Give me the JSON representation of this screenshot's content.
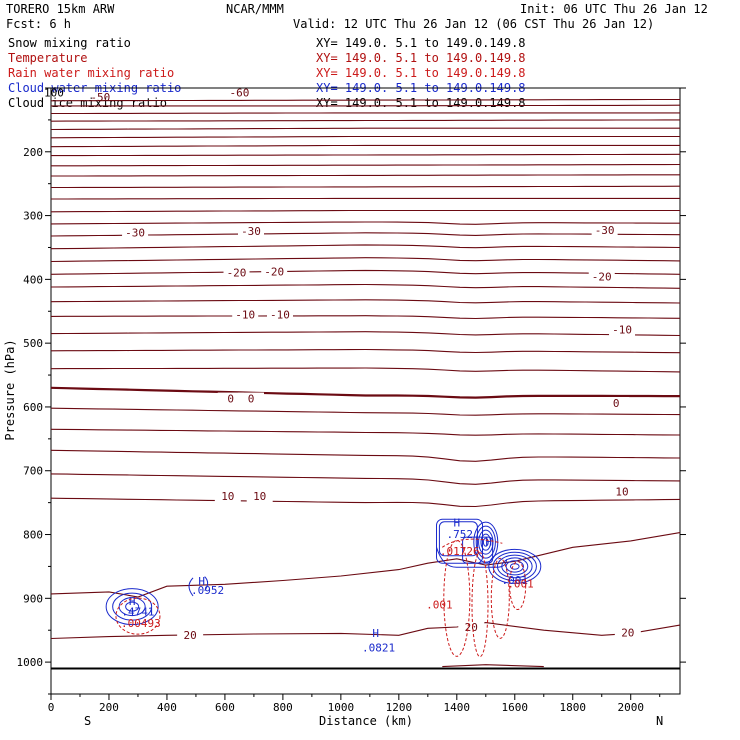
{
  "header": {
    "model": "TORERO  15km ARW",
    "center": "NCAR/MMM",
    "init": "Init: 06 UTC Thu 26 Jan 12",
    "fcst": "Fcst:    6 h",
    "valid": "Valid: 12 UTC Thu 26 Jan 12 (06 CST Thu 26 Jan 12)"
  },
  "colors": {
    "black": "#000000",
    "temperature": "#6b0a12",
    "rain": "#cc1a1a",
    "cloud_water": "#1a2acc"
  },
  "legend": [
    {
      "label": "Snow mixing ratio",
      "coords": "XY= 149.0.  5.1 to 149.0.149.8",
      "color": "#000000"
    },
    {
      "label": "Temperature",
      "coords": "XY= 149.0.  5.1 to 149.0.149.8",
      "color": "#b01010"
    },
    {
      "label": "Rain water mixing ratio",
      "coords": "XY= 149.0.  5.1 to 149.0.149.8",
      "color": "#cc1a1a"
    },
    {
      "label": "Cloud water mixing ratio",
      "coords": "XY= 149.0.  5.1 to 149.0.149.8",
      "color": "#1a2acc"
    },
    {
      "label": "Cloud ice mixing ratio",
      "coords": "XY= 149.0.  5.1 to 149.0.149.8",
      "color": "#000000"
    }
  ],
  "chart_data": {
    "type": "line",
    "title": "",
    "xlabel": "Distance (km)",
    "ylabel": "Pressure (hPa)",
    "xlim": [
      0,
      2170
    ],
    "ylim": [
      1050,
      100
    ],
    "y_scale": "linear",
    "x_ticks": [
      0,
      200,
      400,
      600,
      800,
      1000,
      1200,
      1400,
      1600,
      1800,
      2000
    ],
    "y_ticks": [
      100,
      200,
      300,
      400,
      500,
      600,
      700,
      800,
      900,
      1000
    ],
    "x_end_labels": {
      "left": "S",
      "right": "N"
    },
    "ground_level_hPa": 1010,
    "temperature_contour_labels": [
      {
        "text": "-30",
        "x": 290,
        "p": 330
      },
      {
        "text": "-30",
        "x": 690,
        "p": 327
      },
      {
        "text": "-30",
        "x": 1910,
        "p": 326
      },
      {
        "text": "-20",
        "x": 640,
        "p": 392
      },
      {
        "text": "-20",
        "x": 770,
        "p": 391
      },
      {
        "text": "-20",
        "x": 1900,
        "p": 399
      },
      {
        "text": "-10",
        "x": 670,
        "p": 458
      },
      {
        "text": "-10",
        "x": 790,
        "p": 458
      },
      {
        "text": "-10",
        "x": 1970,
        "p": 482
      },
      {
        "text": "0",
        "x": 620,
        "p": 590
      },
      {
        "text": "0",
        "x": 690,
        "p": 590
      },
      {
        "text": "0",
        "x": 1950,
        "p": 597
      },
      {
        "text": "10",
        "x": 610,
        "p": 743
      },
      {
        "text": "10",
        "x": 720,
        "p": 743
      },
      {
        "text": "10",
        "x": 1970,
        "p": 736
      },
      {
        "text": "20",
        "x": 480,
        "p": 961
      },
      {
        "text": "20",
        "x": 1450,
        "p": 948
      },
      {
        "text": "20",
        "x": 1990,
        "p": 957
      }
    ],
    "cloud_water_labels": [
      {
        "text": "H",
        "x": 520,
        "p": 873
      },
      {
        "text": ".0952",
        "x": 540,
        "p": 887
      },
      {
        "text": "H",
        "x": 280,
        "p": 904
      },
      {
        "text": ".4741",
        "x": 300,
        "p": 921
      },
      {
        "text": "H",
        "x": 1120,
        "p": 954
      },
      {
        "text": ".0821",
        "x": 1130,
        "p": 977
      },
      {
        "text": "H",
        "x": 1400,
        "p": 781
      },
      {
        "text": ".752",
        "x": 1410,
        "p": 799
      },
      {
        "text": "H",
        "x": 1510,
        "p": 811
      },
      {
        "text": ".001",
        "x": 1600,
        "p": 871
      }
    ],
    "rain_labels": [
      {
        "text": ".00493",
        "x": 310,
        "p": 939
      },
      {
        "text": ".01726",
        "x": 1410,
        "p": 826
      },
      {
        "text": ".001",
        "x": 1340,
        "p": 910
      },
      {
        "text": ".001",
        "x": 1620,
        "p": 877
      }
    ],
    "title_overlap_labels": [
      {
        "text": "100",
        "x": 10,
        "p": 109,
        "color": "#000000"
      },
      {
        "text": "-60",
        "x": 650,
        "p": 109,
        "color": "#6b0a12"
      },
      {
        "text": "-50",
        "x": 170,
        "p": 116,
        "color": "#6b0a12"
      }
    ]
  }
}
